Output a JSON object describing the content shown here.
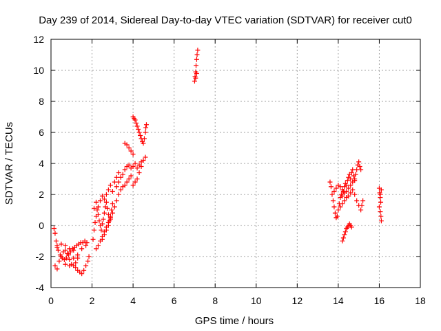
{
  "chart_data": {
    "type": "scatter",
    "title": "Day 239 of 2014, Sidereal Day-to-day VTEC variation (SDTVAR) for receiver cut0",
    "xlabel": "GPS time / hours",
    "ylabel": "SDTVAR / TECUs",
    "xlim": [
      0,
      18
    ],
    "ylim": [
      -4,
      12
    ],
    "xticks": [
      0,
      2,
      4,
      6,
      8,
      10,
      12,
      14,
      16,
      18
    ],
    "yticks": [
      -4,
      -2,
      0,
      2,
      4,
      6,
      8,
      10,
      12
    ],
    "grid": true,
    "marker": "+",
    "color": "#ff0000",
    "series": [
      {
        "name": "SDTVAR",
        "points": [
          [
            0.15,
            -0.2
          ],
          [
            0.2,
            -0.5
          ],
          [
            0.25,
            -1.0
          ],
          [
            0.3,
            -1.3
          ],
          [
            0.35,
            -1.6
          ],
          [
            0.45,
            -1.9
          ],
          [
            0.55,
            -2.1
          ],
          [
            0.65,
            -2.2
          ],
          [
            0.75,
            -2.1
          ],
          [
            0.85,
            -1.9
          ],
          [
            0.95,
            -1.7
          ],
          [
            1.05,
            -1.5
          ],
          [
            1.15,
            -1.4
          ],
          [
            1.25,
            -1.3
          ],
          [
            1.35,
            -1.2
          ],
          [
            1.45,
            -1.1
          ],
          [
            1.55,
            -1.1
          ],
          [
            1.65,
            -1.0
          ],
          [
            1.75,
            -1.1
          ],
          [
            0.2,
            -2.6
          ],
          [
            0.3,
            -2.8
          ],
          [
            0.4,
            -2.3
          ],
          [
            0.5,
            -2.0
          ],
          [
            0.6,
            -1.7
          ],
          [
            0.7,
            -1.6
          ],
          [
            0.8,
            -1.8
          ],
          [
            0.9,
            -2.2
          ],
          [
            1.0,
            -2.5
          ],
          [
            1.1,
            -2.6
          ],
          [
            1.2,
            -2.4
          ],
          [
            1.3,
            -2.1
          ],
          [
            0.7,
            -2.5
          ],
          [
            0.9,
            -2.6
          ],
          [
            1.1,
            -2.1
          ],
          [
            1.2,
            -2.7
          ],
          [
            1.3,
            -2.9
          ],
          [
            1.4,
            -3.0
          ],
          [
            1.5,
            -3.1
          ],
          [
            1.6,
            -2.9
          ],
          [
            1.7,
            -2.6
          ],
          [
            1.8,
            -2.3
          ],
          [
            1.85,
            -2.0
          ],
          [
            0.3,
            -1.4
          ],
          [
            0.5,
            -1.2
          ],
          [
            0.7,
            -1.3
          ],
          [
            0.9,
            -1.5
          ],
          [
            1.1,
            -1.6
          ],
          [
            1.3,
            -1.9
          ],
          [
            1.5,
            -1.5
          ],
          [
            1.7,
            -1.3
          ],
          [
            2.05,
            -0.9
          ],
          [
            2.1,
            -0.3
          ],
          [
            2.15,
            0.2
          ],
          [
            2.2,
            0.6
          ],
          [
            2.25,
            1.0
          ],
          [
            2.3,
            0.7
          ],
          [
            2.35,
            0.3
          ],
          [
            2.4,
            0.0
          ],
          [
            2.45,
            -0.3
          ],
          [
            2.5,
            0.1
          ],
          [
            2.55,
            0.4
          ],
          [
            2.6,
            0.8
          ],
          [
            2.65,
            1.2
          ],
          [
            2.7,
            1.5
          ],
          [
            2.75,
            1.1
          ],
          [
            2.8,
            0.7
          ],
          [
            2.85,
            0.3
          ],
          [
            2.9,
            0.6
          ],
          [
            2.95,
            1.0
          ],
          [
            3.0,
            1.4
          ],
          [
            2.1,
            1.1
          ],
          [
            2.2,
            1.5
          ],
          [
            2.3,
            1.2
          ],
          [
            2.4,
            1.6
          ],
          [
            2.5,
            1.9
          ],
          [
            2.6,
            1.7
          ],
          [
            2.7,
            2.0
          ],
          [
            2.8,
            2.3
          ],
          [
            2.9,
            2.6
          ],
          [
            3.0,
            2.2
          ],
          [
            3.1,
            2.8
          ],
          [
            3.2,
            3.1
          ],
          [
            3.3,
            3.4
          ],
          [
            2.2,
            -1.5
          ],
          [
            2.3,
            -1.3
          ],
          [
            2.4,
            -1.0
          ],
          [
            2.5,
            -0.7
          ],
          [
            2.6,
            -0.4
          ],
          [
            2.7,
            -0.1
          ],
          [
            2.8,
            0.2
          ],
          [
            2.9,
            0.5
          ],
          [
            2.5,
            -0.9
          ],
          [
            2.6,
            -0.6
          ],
          [
            2.7,
            -0.3
          ],
          [
            2.8,
            0.0
          ],
          [
            2.9,
            0.4
          ],
          [
            3.0,
            0.8
          ],
          [
            3.1,
            1.2
          ],
          [
            3.2,
            1.6
          ],
          [
            3.3,
            2.0
          ],
          [
            3.4,
            2.3
          ],
          [
            3.5,
            2.5
          ],
          [
            3.6,
            2.6
          ],
          [
            3.7,
            2.8
          ],
          [
            3.8,
            3.0
          ],
          [
            3.9,
            3.2
          ],
          [
            3.2,
            2.5
          ],
          [
            3.3,
            2.8
          ],
          [
            3.4,
            3.1
          ],
          [
            3.5,
            3.3
          ],
          [
            3.6,
            3.6
          ],
          [
            3.7,
            3.8
          ],
          [
            3.8,
            3.9
          ],
          [
            3.9,
            3.7
          ],
          [
            4.0,
            3.8
          ],
          [
            4.1,
            4.0
          ],
          [
            4.2,
            3.7
          ],
          [
            4.3,
            3.9
          ],
          [
            4.4,
            4.1
          ],
          [
            4.5,
            4.2
          ],
          [
            4.6,
            4.4
          ],
          [
            3.6,
            5.3
          ],
          [
            3.7,
            5.2
          ],
          [
            3.8,
            5.0
          ],
          [
            3.9,
            4.8
          ],
          [
            4.0,
            4.6
          ],
          [
            4.0,
            2.6
          ],
          [
            4.1,
            2.8
          ],
          [
            4.2,
            3.0
          ],
          [
            4.3,
            3.4
          ],
          [
            4.4,
            3.8
          ],
          [
            4.0,
            7.0
          ],
          [
            4.05,
            6.9
          ],
          [
            4.1,
            6.8
          ],
          [
            4.15,
            6.6
          ],
          [
            4.2,
            6.4
          ],
          [
            4.25,
            6.2
          ],
          [
            4.3,
            6.0
          ],
          [
            4.35,
            5.8
          ],
          [
            4.4,
            5.6
          ],
          [
            4.45,
            5.4
          ],
          [
            4.5,
            5.3
          ],
          [
            4.55,
            5.6
          ],
          [
            4.6,
            6.0
          ],
          [
            4.62,
            6.3
          ],
          [
            4.65,
            6.5
          ],
          [
            7.0,
            9.3
          ],
          [
            7.02,
            9.6
          ],
          [
            7.05,
            9.9
          ],
          [
            7.07,
            10.3
          ],
          [
            7.1,
            10.7
          ],
          [
            7.12,
            11.0
          ],
          [
            7.15,
            11.3
          ],
          [
            7.05,
            9.5
          ],
          [
            7.1,
            9.8
          ],
          [
            13.6,
            2.8
          ],
          [
            13.65,
            2.5
          ],
          [
            13.7,
            2.0
          ],
          [
            13.75,
            1.6
          ],
          [
            13.8,
            1.2
          ],
          [
            13.85,
            0.8
          ],
          [
            13.9,
            0.5
          ],
          [
            13.95,
            0.6
          ],
          [
            14.0,
            1.0
          ],
          [
            14.05,
            1.4
          ],
          [
            14.1,
            1.8
          ],
          [
            14.15,
            2.0
          ],
          [
            14.2,
            1.9
          ],
          [
            14.25,
            2.2
          ],
          [
            14.3,
            2.5
          ],
          [
            14.35,
            2.7
          ],
          [
            14.4,
            2.6
          ],
          [
            14.45,
            2.9
          ],
          [
            14.5,
            3.1
          ],
          [
            14.55,
            3.3
          ],
          [
            14.6,
            3.0
          ],
          [
            14.65,
            3.4
          ],
          [
            14.7,
            3.6
          ],
          [
            14.75,
            3.2
          ],
          [
            14.8,
            3.0
          ],
          [
            14.85,
            3.3
          ],
          [
            14.9,
            3.6
          ],
          [
            14.95,
            3.9
          ],
          [
            15.0,
            4.1
          ],
          [
            15.05,
            3.8
          ],
          [
            15.1,
            3.6
          ],
          [
            13.8,
            2.2
          ],
          [
            13.9,
            2.4
          ],
          [
            14.0,
            2.6
          ],
          [
            14.1,
            2.5
          ],
          [
            14.2,
            2.3
          ],
          [
            14.3,
            2.1
          ],
          [
            14.4,
            2.2
          ],
          [
            14.5,
            2.4
          ],
          [
            14.6,
            2.6
          ],
          [
            14.7,
            2.8
          ],
          [
            14.8,
            2.9
          ],
          [
            14.1,
            1.2
          ],
          [
            14.2,
            1.4
          ],
          [
            14.3,
            1.6
          ],
          [
            14.4,
            1.8
          ],
          [
            14.5,
            1.9
          ],
          [
            14.6,
            2.1
          ],
          [
            14.7,
            2.3
          ],
          [
            14.8,
            2.0
          ],
          [
            14.9,
            1.6
          ],
          [
            15.0,
            1.3
          ],
          [
            15.1,
            1.0
          ],
          [
            15.15,
            1.3
          ],
          [
            15.2,
            1.6
          ],
          [
            14.2,
            -1.0
          ],
          [
            14.25,
            -0.8
          ],
          [
            14.3,
            -0.6
          ],
          [
            14.35,
            -0.4
          ],
          [
            14.4,
            -0.2
          ],
          [
            14.45,
            -0.1
          ],
          [
            14.5,
            0.0
          ],
          [
            14.55,
            0.1
          ],
          [
            14.6,
            0.0
          ],
          [
            14.65,
            -0.1
          ],
          [
            16.0,
            2.4
          ],
          [
            16.02,
            2.1
          ],
          [
            16.05,
            1.8
          ],
          [
            16.07,
            1.5
          ],
          [
            16.0,
            1.2
          ],
          [
            16.05,
            0.9
          ],
          [
            16.08,
            0.6
          ],
          [
            16.1,
            0.3
          ],
          [
            16.05,
            2.0
          ],
          [
            16.1,
            2.3
          ]
        ]
      }
    ]
  }
}
